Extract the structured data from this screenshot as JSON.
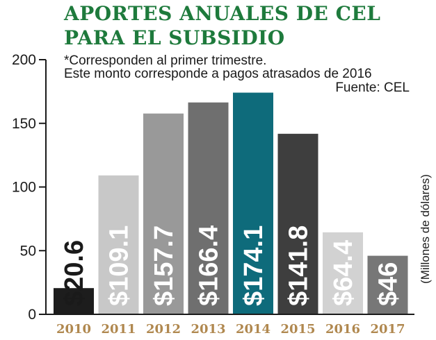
{
  "title_lines": [
    "APORTES ANUALES DE CEL",
    "PARA EL SUBSIDIO"
  ],
  "notes": [
    "*Corresponden al primer trimestre.",
    "Este monto corresponde a pagos atrasados de 2016",
    "Fuente: CEL"
  ],
  "chart_data": {
    "type": "bar",
    "title": "APORTES ANUALES DE CEL PARA EL SUBSIDIO",
    "categories": [
      "2010",
      "2011",
      "2012",
      "2013",
      "2014",
      "2015",
      "2016",
      "2017"
    ],
    "values": [
      20.6,
      109.1,
      157.7,
      166.4,
      174.1,
      141.8,
      64.4,
      46
    ],
    "value_labels": [
      "$20.6",
      "$109.1",
      "$157.7",
      "$166.4",
      "$174.1",
      "$141.8",
      "$64.4",
      "$46"
    ],
    "bar_colors": [
      "#1d1d1d",
      "#c8c8c8",
      "#999999",
      "#6f6f6f",
      "#0e6b7b",
      "#3e3e3e",
      "#d2d2d2",
      "#777777"
    ],
    "label_colors": [
      "#1a1a1a",
      "#ffffff",
      "#ffffff",
      "#ffffff",
      "#ffffff",
      "#ffffff",
      "#ffffff",
      "#ffffff"
    ],
    "ylabel": "(Millones de dólares)",
    "xlabel": "",
    "ylim": [
      0,
      200
    ],
    "yticks": [
      0,
      50,
      100,
      150,
      200
    ],
    "grid": false,
    "legend": "none",
    "colors": {
      "title": "#1e7a3c",
      "tick_year": "#b0884f",
      "axis": "#1a1a1a"
    }
  }
}
